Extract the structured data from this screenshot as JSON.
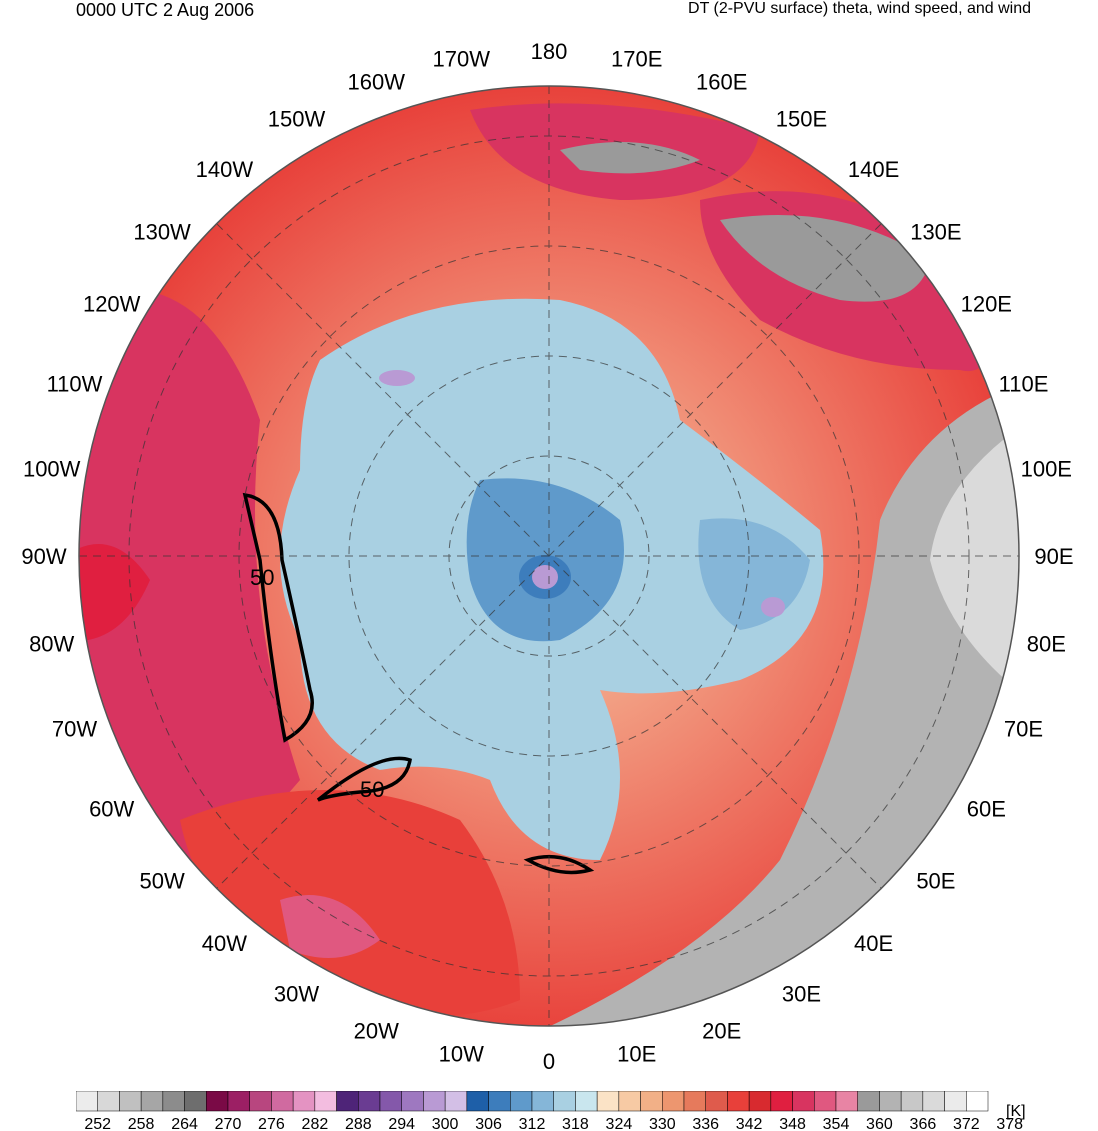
{
  "header": {
    "left": "0000 UTC 2 Aug 2006",
    "right": "DT (2-PVU surface) theta, wind speed, and wind"
  },
  "longitudes": [
    "180",
    "170E",
    "160E",
    "150E",
    "140E",
    "130E",
    "120E",
    "110E",
    "100E",
    "90E",
    "80E",
    "70E",
    "60E",
    "50E",
    "40E",
    "30E",
    "20E",
    "10E",
    "0",
    "10W",
    "20W",
    "30W",
    "40W",
    "50W",
    "60W",
    "70W",
    "80W",
    "90W",
    "100W",
    "110W",
    "120W",
    "130W",
    "140W",
    "150W",
    "160W",
    "170W"
  ],
  "contour_labels": [
    "50",
    "50"
  ],
  "colorbar": {
    "unit": "[K]",
    "labels": [
      "252",
      "258",
      "264",
      "270",
      "276",
      "282",
      "288",
      "294",
      "300",
      "306",
      "312",
      "318",
      "324",
      "330",
      "336",
      "342",
      "348",
      "354",
      "360",
      "366",
      "372",
      "378"
    ],
    "colors": [
      "#ececec",
      "#d8d8d8",
      "#c0c0c0",
      "#a6a6a6",
      "#8c8c8c",
      "#6e6e6e",
      "#7a0a46",
      "#9c1f64",
      "#b8467f",
      "#d06aa0",
      "#e493c2",
      "#f3bde0",
      "#4e2478",
      "#6a3c92",
      "#8458aa",
      "#9e78c0",
      "#b99ad4",
      "#d3bfe6",
      "#1e5fa8",
      "#3d7dbc",
      "#5f9acb",
      "#85b6d8",
      "#a9d0e2",
      "#c9e6ee",
      "#fbe3c6",
      "#f7caa4",
      "#f2b087",
      "#ed966f",
      "#e67a5c",
      "#df5b4c",
      "#e8403a",
      "#d82a2f",
      "#e01f40",
      "#d83460",
      "#e05880",
      "#e884a4",
      "#9a9a9a",
      "#b3b3b3",
      "#c8c8c8",
      "#dadada",
      "#ebebeb",
      "#ffffff"
    ]
  }
}
